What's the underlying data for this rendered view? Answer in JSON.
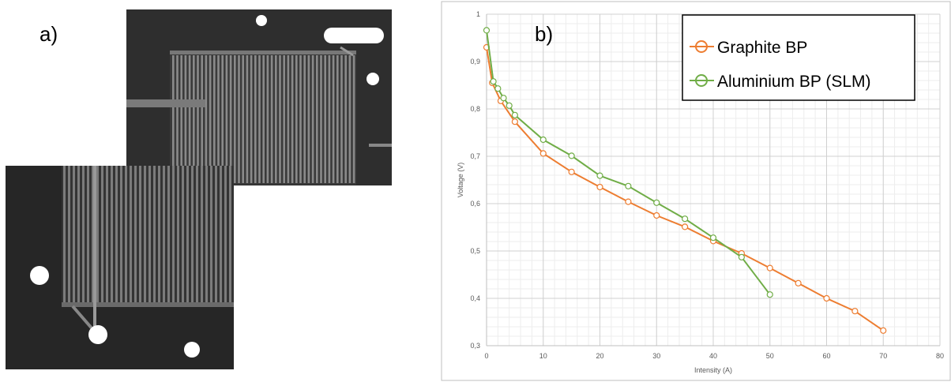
{
  "panel_a": {
    "label": "a)"
  },
  "chart_data": {
    "type": "line",
    "panel_label": "b)",
    "xlabel": "Intensity (A)",
    "ylabel": "Voltage (V)",
    "xlim": [
      0,
      80
    ],
    "ylim": [
      0.3,
      1.0
    ],
    "x_ticks": [
      "0",
      "10",
      "20",
      "30",
      "40",
      "50",
      "60",
      "70",
      "80"
    ],
    "y_ticks": [
      "0,3",
      "0,4",
      "0,5",
      "0,6",
      "0,7",
      "0,8",
      "0,9",
      "1"
    ],
    "grid": true,
    "legend_position": "top-right",
    "series": [
      {
        "name": "Graphite BP",
        "color": "#ED7D31",
        "x": [
          0,
          1,
          2.5,
          5,
          10,
          15,
          20,
          25,
          30,
          35,
          40,
          45,
          50,
          55,
          60,
          65,
          70
        ],
        "y": [
          0.93,
          0.855,
          0.817,
          0.773,
          0.706,
          0.667,
          0.635,
          0.604,
          0.575,
          0.551,
          0.521,
          0.495,
          0.464,
          0.432,
          0.4,
          0.373,
          0.332
        ]
      },
      {
        "name": "Aluminium BP (SLM)",
        "color": "#70AD47",
        "x": [
          0,
          1.2,
          2,
          3,
          4,
          5,
          10,
          15,
          20,
          25,
          30,
          35,
          40,
          45,
          50
        ],
        "y": [
          0.966,
          0.858,
          0.843,
          0.823,
          0.807,
          0.787,
          0.735,
          0.701,
          0.659,
          0.637,
          0.602,
          0.568,
          0.528,
          0.487,
          0.408
        ]
      }
    ]
  }
}
